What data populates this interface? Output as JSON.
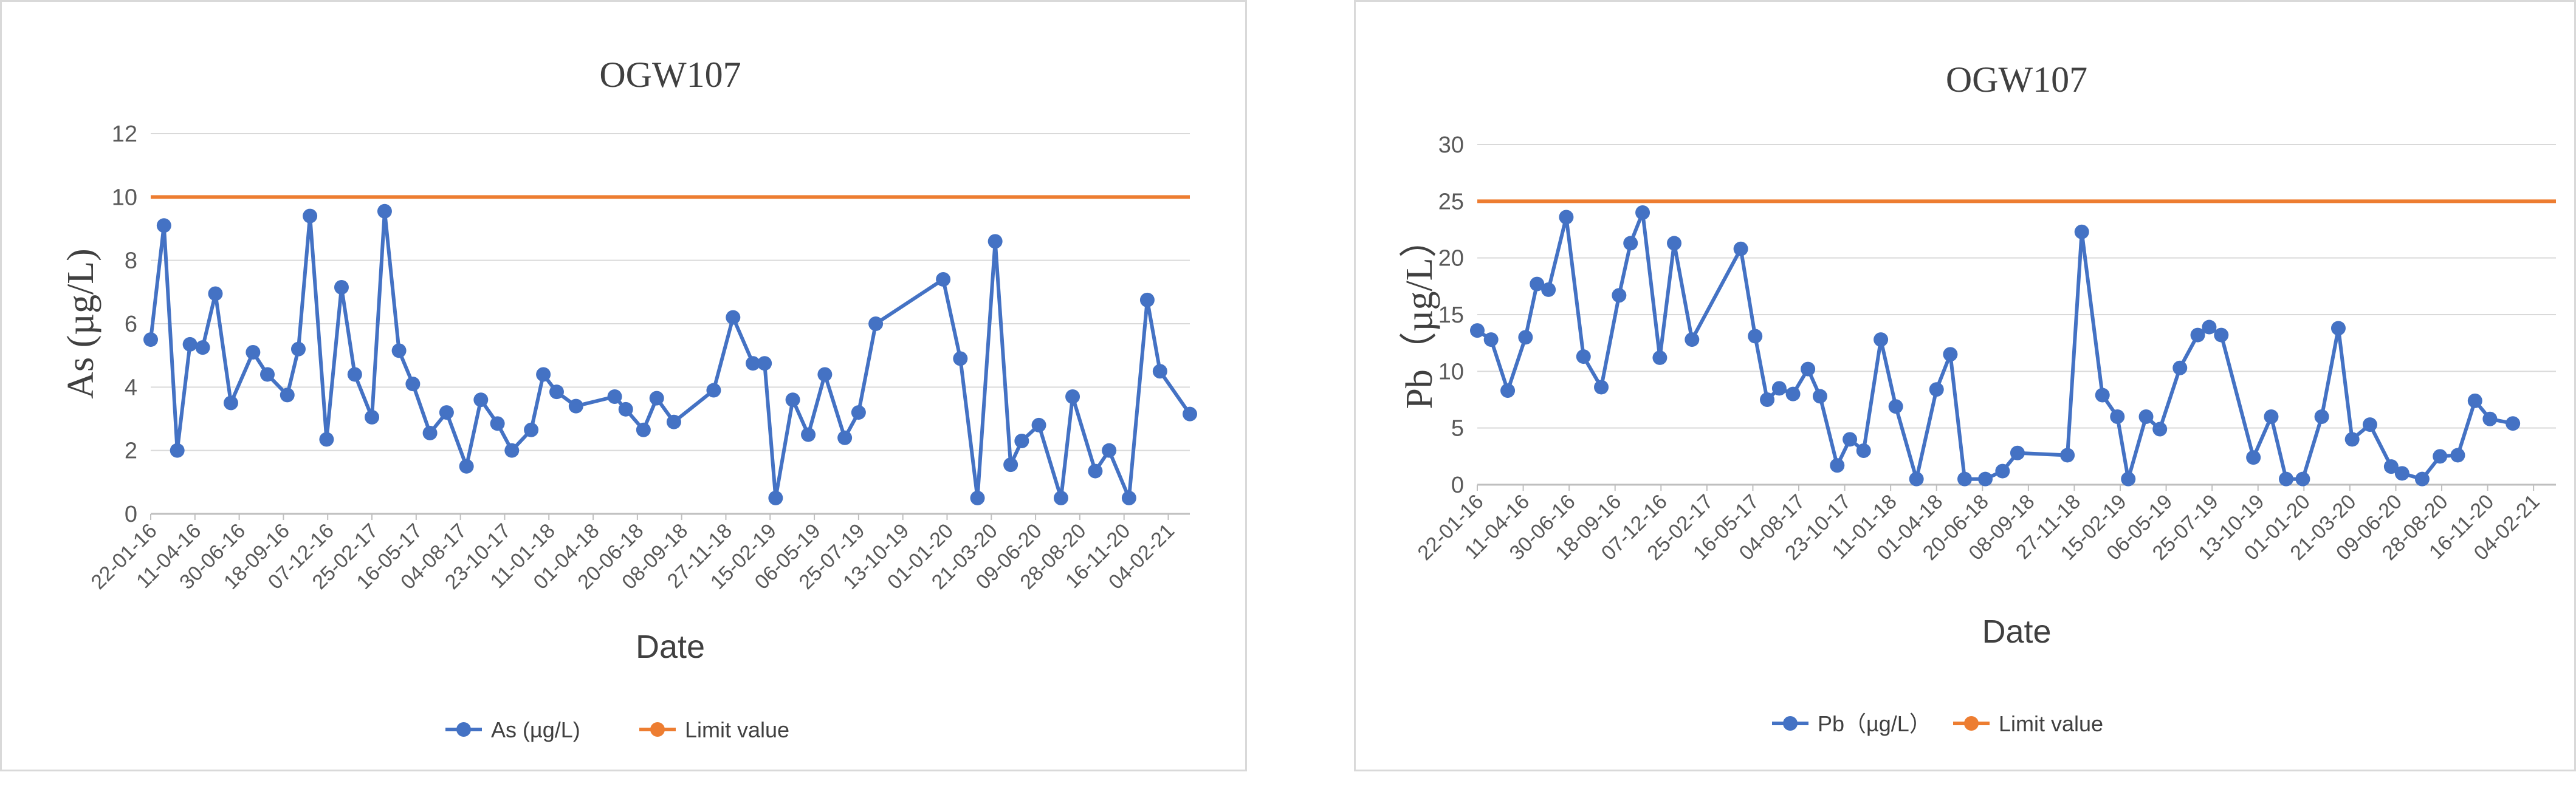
{
  "chart_data": [
    {
      "type": "line",
      "title": "OGW107",
      "xlabel": "Date",
      "ylabel": "As (µg/L)",
      "ylim": [
        0,
        12
      ],
      "yticks": [
        0,
        2,
        4,
        6,
        8,
        10,
        12
      ],
      "x_tick_labels": [
        "22-01-16",
        "11-04-16",
        "30-06-16",
        "18-09-16",
        "07-12-16",
        "25-02-17",
        "16-05-17",
        "04-08-17",
        "23-10-17",
        "11-01-18",
        "01-04-18",
        "20-06-18",
        "08-09-18",
        "27-11-18",
        "15-02-19",
        "06-05-19",
        "25-07-19",
        "13-10-19",
        "01-01-20",
        "21-03-20",
        "09-06-20",
        "28-08-20",
        "16-11-20",
        "04-02-21"
      ],
      "x_range": [
        "2016-01-22",
        "2021-03-15"
      ],
      "grid": "horizontal",
      "legend": "bottom",
      "series": [
        {
          "name": "As (µg/L)",
          "color": "#4472c4",
          "points": [
            [
              "2016-01-22",
              5.5
            ],
            [
              "2016-02-15",
              9.1
            ],
            [
              "2016-03-10",
              2.0
            ],
            [
              "2016-04-02",
              5.35
            ],
            [
              "2016-04-25",
              5.25
            ],
            [
              "2016-05-18",
              6.95
            ],
            [
              "2016-06-15",
              3.5
            ],
            [
              "2016-07-25",
              5.1
            ],
            [
              "2016-08-20",
              4.4
            ],
            [
              "2016-09-25",
              3.75
            ],
            [
              "2016-10-15",
              5.2
            ],
            [
              "2016-11-05",
              9.4
            ],
            [
              "2016-12-05",
              2.35
            ],
            [
              "2017-01-01",
              7.15
            ],
            [
              "2017-01-25",
              4.4
            ],
            [
              "2017-02-25",
              3.05
            ],
            [
              "2017-03-20",
              9.55
            ],
            [
              "2017-04-15",
              5.15
            ],
            [
              "2017-05-10",
              4.1
            ],
            [
              "2017-06-10",
              2.55
            ],
            [
              "2017-07-10",
              3.2
            ],
            [
              "2017-08-15",
              1.5
            ],
            [
              "2017-09-10",
              3.6
            ],
            [
              "2017-10-10",
              2.85
            ],
            [
              "2017-11-05",
              2.0
            ],
            [
              "2017-12-10",
              2.65
            ],
            [
              "2018-01-01",
              4.4
            ],
            [
              "2018-01-25",
              3.85
            ],
            [
              "2018-03-01",
              3.4
            ],
            [
              "2018-05-10",
              3.7
            ],
            [
              "2018-05-30",
              3.3
            ],
            [
              "2018-07-01",
              2.65
            ],
            [
              "2018-07-25",
              3.65
            ],
            [
              "2018-08-25",
              2.9
            ],
            [
              "2018-11-05",
              3.9
            ],
            [
              "2018-12-10",
              6.2
            ],
            [
              "2019-01-15",
              4.75
            ],
            [
              "2019-02-05",
              4.75
            ],
            [
              "2019-02-25",
              0.5
            ],
            [
              "2019-03-28",
              3.6
            ],
            [
              "2019-04-25",
              2.5
            ],
            [
              "2019-05-25",
              4.4
            ],
            [
              "2019-06-30",
              2.4
            ],
            [
              "2019-07-25",
              3.2
            ],
            [
              "2019-08-25",
              6.0
            ],
            [
              "2019-12-25",
              7.4
            ],
            [
              "2020-01-25",
              4.9
            ],
            [
              "2020-02-25",
              0.5
            ],
            [
              "2020-03-28",
              8.6
            ],
            [
              "2020-04-25",
              1.55
            ],
            [
              "2020-05-15",
              2.3
            ],
            [
              "2020-06-15",
              2.8
            ],
            [
              "2020-07-25",
              0.5
            ],
            [
              "2020-08-15",
              3.7
            ],
            [
              "2020-09-25",
              1.35
            ],
            [
              "2020-10-20",
              2.0
            ],
            [
              "2020-11-25",
              0.5
            ],
            [
              "2020-12-28",
              6.75
            ],
            [
              "2021-01-20",
              4.5
            ],
            [
              "2021-03-15",
              3.15
            ]
          ]
        },
        {
          "name": "Limit value",
          "color": "#ed7d31",
          "constant": 10
        }
      ]
    },
    {
      "type": "line",
      "title": "OGW107",
      "xlabel": "Date",
      "ylabel": "Pb（µg/L）",
      "ylim": [
        0,
        30
      ],
      "yticks": [
        0,
        5,
        10,
        15,
        20,
        25,
        30
      ],
      "x_tick_labels": [
        "22-01-16",
        "11-04-16",
        "30-06-16",
        "18-09-16",
        "07-12-16",
        "25-02-17",
        "16-05-17",
        "04-08-17",
        "23-10-17",
        "11-01-18",
        "01-04-18",
        "20-06-18",
        "08-09-18",
        "27-11-18",
        "15-02-19",
        "06-05-19",
        "25-07-19",
        "13-10-19",
        "01-01-20",
        "21-03-20",
        "09-06-20",
        "28-08-20",
        "16-11-20",
        "04-02-21"
      ],
      "x_range": [
        "2016-01-22",
        "2021-03-15"
      ],
      "grid": "horizontal",
      "legend": "bottom",
      "series": [
        {
          "name": "Pb（µg/L）",
          "color": "#4472c4",
          "points": [
            [
              "2016-01-22",
              13.6
            ],
            [
              "2016-02-15",
              12.8
            ],
            [
              "2016-03-15",
              8.3
            ],
            [
              "2016-04-15",
              13.0
            ],
            [
              "2016-05-05",
              17.7
            ],
            [
              "2016-05-25",
              17.2
            ],
            [
              "2016-06-25",
              23.6
            ],
            [
              "2016-07-25",
              11.3
            ],
            [
              "2016-08-25",
              8.6
            ],
            [
              "2016-09-25",
              16.7
            ],
            [
              "2016-10-15",
              21.3
            ],
            [
              "2016-11-05",
              24.0
            ],
            [
              "2016-12-05",
              11.2
            ],
            [
              "2016-12-30",
              21.3
            ],
            [
              "2017-01-30",
              12.8
            ],
            [
              "2017-04-25",
              20.8
            ],
            [
              "2017-05-20",
              13.1
            ],
            [
              "2017-06-10",
              7.5
            ],
            [
              "2017-07-01",
              8.5
            ],
            [
              "2017-07-25",
              8.0
            ],
            [
              "2017-08-20",
              10.2
            ],
            [
              "2017-09-10",
              7.8
            ],
            [
              "2017-10-10",
              1.7
            ],
            [
              "2017-11-01",
              4.0
            ],
            [
              "2017-11-25",
              3.0
            ],
            [
              "2017-12-25",
              12.8
            ],
            [
              "2018-01-20",
              6.9
            ],
            [
              "2018-02-25",
              0.5
            ],
            [
              "2018-04-01",
              8.4
            ],
            [
              "2018-04-25",
              11.5
            ],
            [
              "2018-05-20",
              0.5
            ],
            [
              "2018-06-25",
              0.5
            ],
            [
              "2018-07-25",
              1.2
            ],
            [
              "2018-08-20",
              2.8
            ],
            [
              "2018-11-15",
              2.6
            ],
            [
              "2018-12-10",
              22.3
            ],
            [
              "2019-01-15",
              7.9
            ],
            [
              "2019-02-10",
              6.0
            ],
            [
              "2019-03-01",
              0.5
            ],
            [
              "2019-04-01",
              6.0
            ],
            [
              "2019-04-25",
              4.9
            ],
            [
              "2019-05-30",
              10.3
            ],
            [
              "2019-06-30",
              13.2
            ],
            [
              "2019-07-20",
              13.9
            ],
            [
              "2019-08-10",
              13.2
            ],
            [
              "2019-10-05",
              2.4
            ],
            [
              "2019-11-05",
              6.0
            ],
            [
              "2019-12-01",
              0.5
            ],
            [
              "2019-12-30",
              0.5
            ],
            [
              "2020-02-01",
              6.0
            ],
            [
              "2020-03-01",
              13.8
            ],
            [
              "2020-03-25",
              4.0
            ],
            [
              "2020-04-25",
              5.3
            ],
            [
              "2020-06-01",
              1.6
            ],
            [
              "2020-06-20",
              1.0
            ],
            [
              "2020-07-25",
              0.5
            ],
            [
              "2020-08-25",
              2.5
            ],
            [
              "2020-09-25",
              2.6
            ],
            [
              "2020-10-25",
              7.4
            ],
            [
              "2020-11-20",
              5.8
            ],
            [
              "2020-12-30",
              5.4
            ]
          ]
        },
        {
          "name": "Limit value",
          "color": "#ed7d31",
          "constant": 25
        }
      ]
    }
  ]
}
